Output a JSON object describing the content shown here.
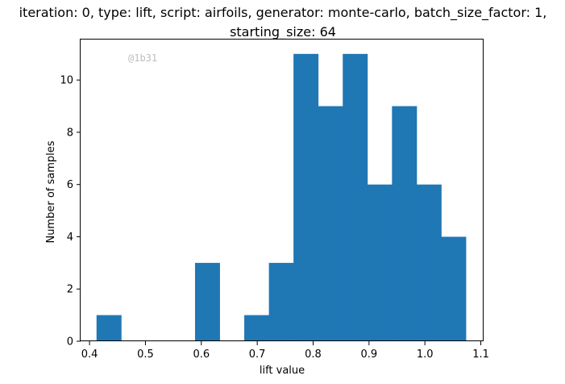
{
  "chart_data": {
    "type": "bar",
    "title_lines": [
      "iteration: 0, type: lift, script: airfoils, generator: monte-carlo, batch_size_factor: 1,",
      "starting_size: 64"
    ],
    "xlabel": "lift value",
    "ylabel": "Number of samples",
    "watermark": "@1b31",
    "bar_color": "#1f77b4",
    "xlim": [
      0.384,
      1.105
    ],
    "ylim": [
      0,
      11.55
    ],
    "xticks": [
      0.4,
      0.5,
      0.6,
      0.7,
      0.8,
      0.9,
      1.0,
      1.1
    ],
    "xtick_labels": [
      "0.4",
      "0.5",
      "0.6",
      "0.7",
      "0.8",
      "0.9",
      "1.0",
      "1.1"
    ],
    "yticks": [
      0,
      2,
      4,
      6,
      8,
      10
    ],
    "ytick_labels": [
      "0",
      "2",
      "4",
      "6",
      "8",
      "10"
    ],
    "bins": [
      {
        "x0": 0.4125,
        "x1": 0.4566,
        "count": 1
      },
      {
        "x0": 0.4566,
        "x1": 0.5006,
        "count": 0
      },
      {
        "x0": 0.5006,
        "x1": 0.5447,
        "count": 0
      },
      {
        "x0": 0.5447,
        "x1": 0.5887,
        "count": 0
      },
      {
        "x0": 0.5887,
        "x1": 0.6328,
        "count": 3
      },
      {
        "x0": 0.6328,
        "x1": 0.6768,
        "count": 0
      },
      {
        "x0": 0.6768,
        "x1": 0.7209,
        "count": 1
      },
      {
        "x0": 0.7209,
        "x1": 0.7649,
        "count": 3
      },
      {
        "x0": 0.7649,
        "x1": 0.809,
        "count": 11
      },
      {
        "x0": 0.809,
        "x1": 0.853,
        "count": 9
      },
      {
        "x0": 0.853,
        "x1": 0.8971,
        "count": 11
      },
      {
        "x0": 0.8971,
        "x1": 0.9411,
        "count": 6
      },
      {
        "x0": 0.9411,
        "x1": 0.9852,
        "count": 9
      },
      {
        "x0": 0.9852,
        "x1": 1.0292,
        "count": 6
      },
      {
        "x0": 1.0292,
        "x1": 1.0733,
        "count": 4
      }
    ]
  }
}
